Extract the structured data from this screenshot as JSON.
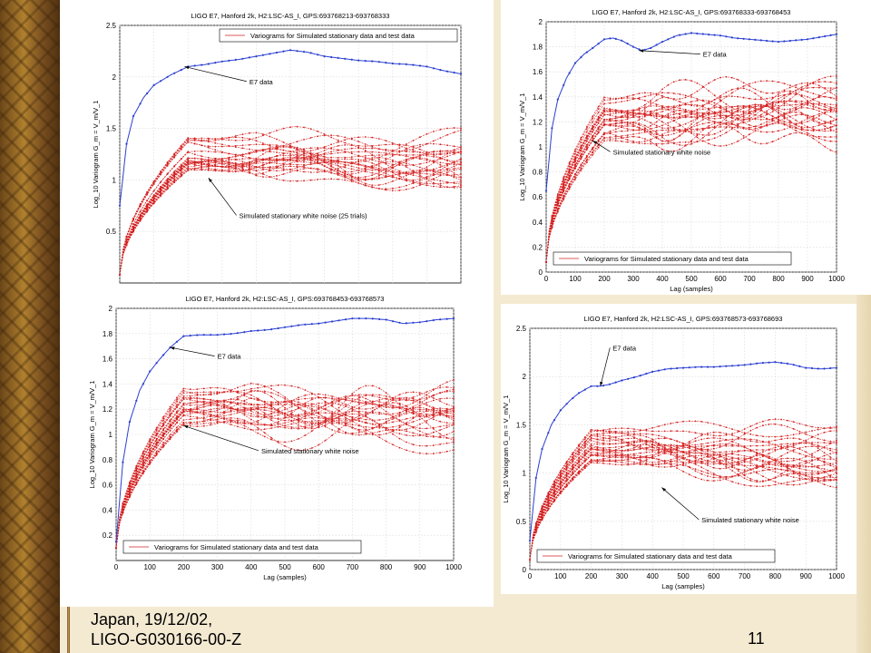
{
  "colors": {
    "e7": "#2b3fd1",
    "sim": "#d42020",
    "grid": "#d7d7d7"
  },
  "footer": {
    "line1": "Japan, 19/12/02,",
    "line2": "LIGO-G030166-00-Z",
    "page_number": "11"
  },
  "chart_data": [
    {
      "type": "line",
      "title": "LIGO E7, Hanford 2k, H2:LSC-AS_I, GPS:693768213-693768333",
      "xlabel": "",
      "ylabel": "Log_10 Variogram G_m = V_m/V_1",
      "xlim": [
        0,
        1000
      ],
      "ylim": [
        0,
        2.5
      ],
      "xticks": [],
      "yticks": [
        0.5,
        1,
        1.5,
        2,
        2.5
      ],
      "legend": "Variograms for Simulated stationary data and test data",
      "legend_position": "top-right",
      "annotations": [
        {
          "text": "E7 data",
          "at_x": 190,
          "at_y": 2.1,
          "label_x": 380,
          "label_y": 1.93
        },
        {
          "text": "Simulated stationary white noise (25 trials)",
          "at_x": 260,
          "at_y": 1.02,
          "label_x": 350,
          "label_y": 0.63
        }
      ],
      "grid": true,
      "series": [
        {
          "name": "E7 data",
          "color": "e7",
          "x": [
            0,
            20,
            40,
            70,
            100,
            150,
            200,
            250,
            300,
            350,
            400,
            450,
            500,
            550,
            600,
            650,
            700,
            750,
            800,
            850,
            900,
            950,
            1000
          ],
          "values": [
            0.75,
            1.35,
            1.62,
            1.8,
            1.92,
            2.02,
            2.1,
            2.12,
            2.15,
            2.17,
            2.2,
            2.23,
            2.26,
            2.24,
            2.2,
            2.18,
            2.16,
            2.15,
            2.13,
            2.12,
            2.1,
            2.06,
            2.03
          ]
        }
      ],
      "simulated": {
        "trials": 25,
        "start": 0.08,
        "knee_x": 200,
        "knee_low": 1.08,
        "knee_high": 1.42,
        "end_low": 0.95,
        "end_high": 1.55,
        "seed": 11
      }
    },
    {
      "type": "line",
      "title": "LIGO E7, Hanford 2k, H2:LSC-AS_I, GPS:693768333-693768453",
      "xlabel": "Lag (samples)",
      "ylabel": "Log_10 Variogram G_m = V_m/V_1",
      "xlim": [
        0,
        1000
      ],
      "ylim": [
        0,
        2
      ],
      "xticks": [
        0,
        100,
        200,
        300,
        400,
        500,
        600,
        700,
        800,
        900,
        1000
      ],
      "yticks": [
        0,
        0.2,
        0.4,
        0.6,
        0.8,
        1,
        1.2,
        1.4,
        1.6,
        1.8,
        2
      ],
      "legend": "Variograms for Simulated stationary data and test data",
      "legend_position": "bottom-left",
      "annotations": [
        {
          "text": "E7 data",
          "at_x": 320,
          "at_y": 1.77,
          "label_x": 540,
          "label_y": 1.72
        },
        {
          "text": "Simulated stationary white noise",
          "at_x": 160,
          "at_y": 1.05,
          "label_x": 230,
          "label_y": 0.94
        }
      ],
      "grid": true,
      "series": [
        {
          "name": "E7 data",
          "color": "e7",
          "x": [
            0,
            20,
            40,
            70,
            100,
            130,
            160,
            200,
            230,
            260,
            300,
            330,
            360,
            400,
            450,
            500,
            550,
            600,
            650,
            700,
            750,
            800,
            850,
            900,
            950,
            1000
          ],
          "values": [
            0.65,
            1.15,
            1.38,
            1.55,
            1.67,
            1.74,
            1.79,
            1.86,
            1.87,
            1.85,
            1.8,
            1.77,
            1.79,
            1.84,
            1.89,
            1.91,
            1.9,
            1.89,
            1.87,
            1.86,
            1.85,
            1.84,
            1.85,
            1.86,
            1.88,
            1.9
          ]
        }
      ],
      "simulated": {
        "trials": 25,
        "start": 0.08,
        "knee_x": 200,
        "knee_low": 1.02,
        "knee_high": 1.4,
        "end_low": 1.0,
        "end_high": 1.5,
        "seed": 23
      }
    },
    {
      "type": "line",
      "title": "LIGO E7, Hanford 2k, H2:LSC-AS_I, GPS:693768453-693768573",
      "xlabel": "Lag (samples)",
      "ylabel": "Log_10 Variogram G_m = V_m/V_1",
      "xlim": [
        0,
        1000
      ],
      "ylim": [
        0,
        2
      ],
      "xticks": [
        0,
        100,
        200,
        300,
        400,
        500,
        600,
        700,
        800,
        900,
        1000
      ],
      "yticks": [
        0.2,
        0.4,
        0.6,
        0.8,
        1,
        1.2,
        1.4,
        1.6,
        1.8,
        2
      ],
      "legend": "Variograms for Simulated stationary data and test data",
      "legend_position": "bottom-left",
      "annotations": [
        {
          "text": "E7 data",
          "at_x": 160,
          "at_y": 1.69,
          "label_x": 300,
          "label_y": 1.6
        },
        {
          "text": "Simulated stationary white noise",
          "at_x": 200,
          "at_y": 1.07,
          "label_x": 430,
          "label_y": 0.85
        }
      ],
      "grid": true,
      "series": [
        {
          "name": "E7 data",
          "color": "e7",
          "x": [
            0,
            20,
            40,
            70,
            100,
            130,
            160,
            200,
            250,
            300,
            350,
            400,
            450,
            500,
            550,
            600,
            650,
            700,
            750,
            800,
            850,
            900,
            950,
            1000
          ],
          "values": [
            0.15,
            0.78,
            1.1,
            1.35,
            1.5,
            1.6,
            1.69,
            1.78,
            1.79,
            1.79,
            1.8,
            1.82,
            1.83,
            1.85,
            1.87,
            1.88,
            1.9,
            1.92,
            1.92,
            1.91,
            1.88,
            1.89,
            1.91,
            1.92
          ]
        }
      ],
      "simulated": {
        "trials": 25,
        "start": 0.1,
        "knee_x": 200,
        "knee_low": 1.07,
        "knee_high": 1.41,
        "end_low": 0.97,
        "end_high": 1.33,
        "seed": 37
      }
    },
    {
      "type": "line",
      "title": "LIGO E7, Hanford 2k, H2:LSC-AS_I, GPS:693768573-693768693",
      "xlabel": "Lag (samples)",
      "ylabel": "Log_10 Variogram G_m = V_m/V_1",
      "xlim": [
        0,
        1000
      ],
      "ylim": [
        0,
        2.5
      ],
      "xticks": [
        0,
        100,
        200,
        300,
        400,
        500,
        600,
        700,
        800,
        900,
        1000
      ],
      "yticks": [
        0,
        0.5,
        1,
        1.5,
        2,
        2.5
      ],
      "legend": "Variograms for Simulated stationary data and test data",
      "legend_position": "bottom-left",
      "annotations": [
        {
          "text": "E7 data",
          "at_x": 230,
          "at_y": 1.9,
          "label_x": 270,
          "label_y": 2.27
        },
        {
          "text": "Simulated stationary white noise",
          "at_x": 430,
          "at_y": 0.85,
          "label_x": 560,
          "label_y": 0.49
        }
      ],
      "grid": true,
      "series": [
        {
          "name": "E7 data",
          "color": "e7",
          "x": [
            0,
            20,
            40,
            70,
            100,
            130,
            160,
            200,
            230,
            260,
            300,
            350,
            400,
            450,
            500,
            550,
            600,
            650,
            700,
            750,
            800,
            850,
            900,
            950,
            1000
          ],
          "values": [
            0.3,
            0.95,
            1.25,
            1.5,
            1.65,
            1.75,
            1.83,
            1.9,
            1.9,
            1.92,
            1.96,
            2.0,
            2.05,
            2.08,
            2.09,
            2.1,
            2.1,
            2.11,
            2.12,
            2.14,
            2.15,
            2.13,
            2.09,
            2.08,
            2.09
          ]
        }
      ],
      "simulated": {
        "trials": 25,
        "start": 0.1,
        "knee_x": 200,
        "knee_low": 1.1,
        "knee_high": 1.45,
        "end_low": 0.85,
        "end_high": 1.5,
        "seed": 53
      }
    }
  ]
}
